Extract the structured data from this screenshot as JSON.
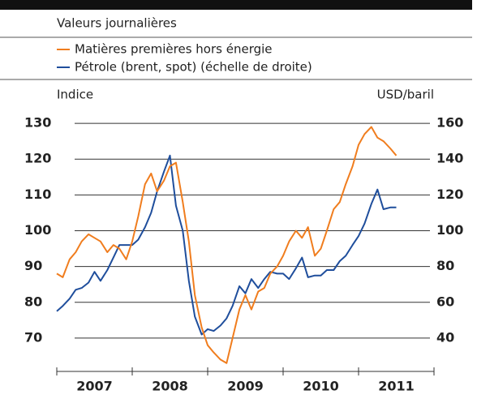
{
  "chart_data": {
    "type": "line",
    "subtitle": "Valeurs journalières",
    "ylabel": "Indice",
    "y2label": "USD/baril",
    "x": [
      2007.0,
      2007.08,
      2007.17,
      2007.25,
      2007.33,
      2007.42,
      2007.5,
      2007.58,
      2007.67,
      2007.75,
      2007.83,
      2007.92,
      2008.0,
      2008.08,
      2008.17,
      2008.25,
      2008.33,
      2008.42,
      2008.5,
      2008.58,
      2008.67,
      2008.75,
      2008.83,
      2008.92,
      2009.0,
      2009.08,
      2009.17,
      2009.25,
      2009.33,
      2009.42,
      2009.5,
      2009.58,
      2009.67,
      2009.75,
      2009.83,
      2009.92,
      2010.0,
      2010.08,
      2010.17,
      2010.25,
      2010.33,
      2010.42,
      2010.5,
      2010.58,
      2010.67,
      2010.75,
      2010.83,
      2010.92,
      2011.0,
      2011.08,
      2011.17,
      2011.25,
      2011.33,
      2011.42,
      2011.5
    ],
    "series": [
      {
        "name": "Matières premières hors énergie",
        "color": "#f07d1e",
        "axis": "y",
        "values": [
          88,
          87,
          92,
          94,
          97,
          99,
          98,
          97,
          94,
          96,
          95,
          92,
          97,
          104,
          113,
          116,
          111,
          114,
          118,
          119,
          108,
          97,
          82,
          73,
          68,
          66,
          64,
          63,
          70,
          78,
          82,
          78,
          83,
          84,
          88,
          90,
          93,
          97,
          100,
          98,
          101,
          93,
          95,
          100,
          106,
          108,
          113,
          118,
          124,
          127,
          129,
          126,
          125,
          123,
          121
        ]
      },
      {
        "name": "Pétrole (brent, spot) (échelle de droite)",
        "color": "#1f4e9c",
        "axis": "y2",
        "values": [
          55,
          58,
          62,
          67,
          68,
          71,
          77,
          72,
          78,
          85,
          92,
          92,
          92,
          95,
          102,
          110,
          122,
          133,
          142,
          114,
          100,
          72,
          52,
          42,
          45,
          44,
          47,
          51,
          58,
          69,
          65,
          73,
          68,
          73,
          77,
          76,
          76,
          73,
          79,
          85,
          74,
          75,
          75,
          78,
          78,
          83,
          86,
          92,
          97,
          104,
          115,
          123,
          112,
          113,
          113
        ]
      }
    ],
    "xlim": [
      2007,
      2012
    ],
    "xticks": [
      2007,
      2008,
      2009,
      2010,
      2011,
      2012
    ],
    "xlabels": [
      {
        "value": 2007.5,
        "label": "2007"
      },
      {
        "value": 2008.5,
        "label": "2008"
      },
      {
        "value": 2009.5,
        "label": "2009"
      },
      {
        "value": 2010.5,
        "label": "2010"
      },
      {
        "value": 2011.5,
        "label": "2011"
      }
    ],
    "ylim": [
      62.5,
      135
    ],
    "yticks": [
      70,
      80,
      90,
      100,
      110,
      120,
      130
    ],
    "y2lim": [
      25,
      170
    ],
    "y2ticks": [
      40,
      60,
      80,
      100,
      120,
      140,
      160
    ],
    "grid": true
  }
}
